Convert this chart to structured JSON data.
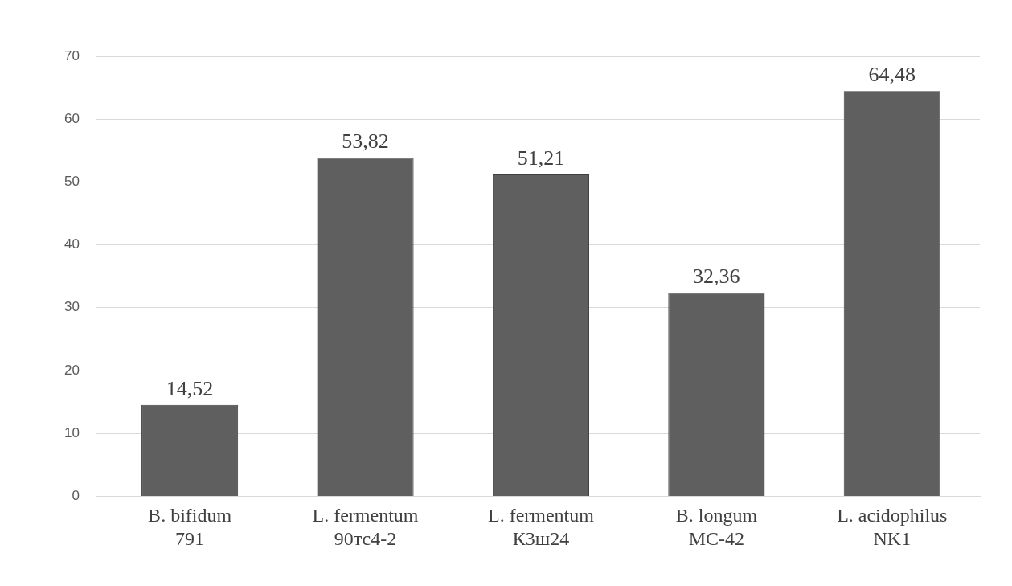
{
  "chart_data": {
    "type": "bar",
    "categories": [
      "B. bifidum\n791",
      "L. fermentum\n90тс4-2",
      "L. fermentum\nК3ш24",
      "B. longum\nМС-42",
      "L. acidophilus\nNK1"
    ],
    "values": [
      14.52,
      53.82,
      51.21,
      32.36,
      64.48
    ],
    "value_labels": [
      "14,52",
      "53,82",
      "51,21",
      "32,36",
      "64,48"
    ],
    "color": "#5f5f5f",
    "ylim": [
      0,
      70
    ],
    "yticks": [
      0,
      10,
      20,
      30,
      40,
      50,
      60,
      70
    ],
    "grid": "y",
    "legend": false
  }
}
